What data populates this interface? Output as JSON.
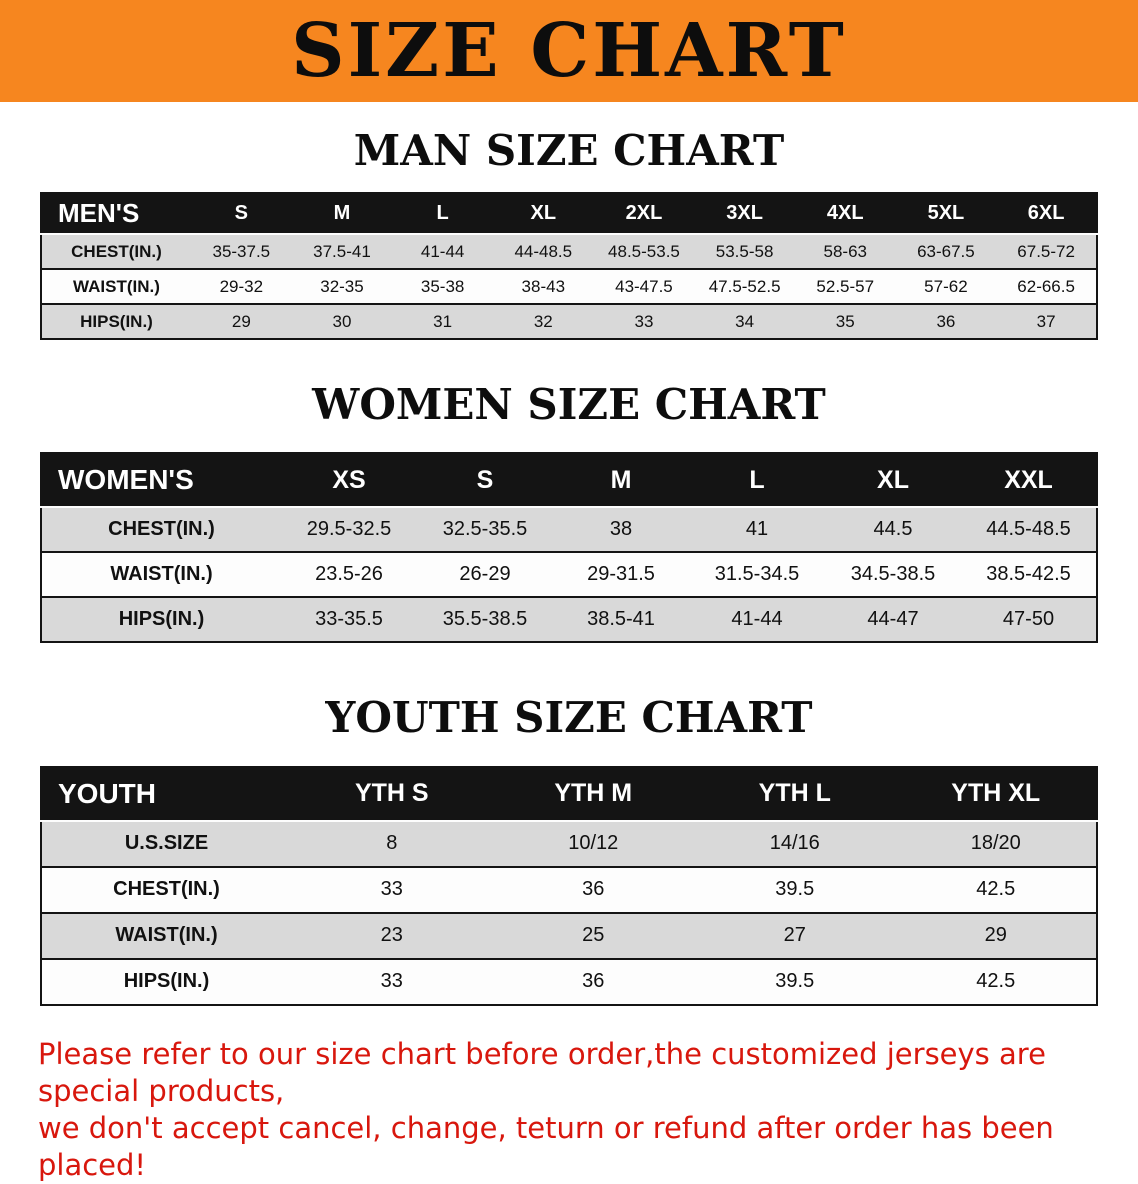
{
  "banner": {
    "title": "SIZE CHART"
  },
  "colors": {
    "banner_orange": "#f6861f",
    "header_black": "#141414",
    "row_gray": "#d9d9d9",
    "disclaimer_red": "#d8170d"
  },
  "men_chart": {
    "heading": "MAN SIZE CHART",
    "table": {
      "title": "MEN'S",
      "columns": [
        "S",
        "M",
        "L",
        "XL",
        "2XL",
        "3XL",
        "4XL",
        "5XL",
        "6XL"
      ],
      "rows": [
        {
          "label": "CHEST(IN.)",
          "values": [
            "35-37.5",
            "37.5-41",
            "41-44",
            "44-48.5",
            "48.5-53.5",
            "53.5-58",
            "58-63",
            "63-67.5",
            "67.5-72"
          ]
        },
        {
          "label": "WAIST(IN.)",
          "values": [
            "29-32",
            "32-35",
            "35-38",
            "38-43",
            "43-47.5",
            "47.5-52.5",
            "52.5-57",
            "57-62",
            "62-66.5"
          ]
        },
        {
          "label": "HIPS(IN.)",
          "values": [
            "29",
            "30",
            "31",
            "32",
            "33",
            "34",
            "35",
            "36",
            "37"
          ]
        }
      ]
    }
  },
  "women_chart": {
    "heading": "WOMEN SIZE CHART",
    "table": {
      "title": "WOMEN'S",
      "columns": [
        "XS",
        "S",
        "M",
        "L",
        "XL",
        "XXL"
      ],
      "rows": [
        {
          "label": "CHEST(IN.)",
          "values": [
            "29.5-32.5",
            "32.5-35.5",
            "38",
            "41",
            "44.5",
            "44.5-48.5"
          ]
        },
        {
          "label": "WAIST(IN.)",
          "values": [
            "23.5-26",
            "26-29",
            "29-31.5",
            "31.5-34.5",
            "34.5-38.5",
            "38.5-42.5"
          ]
        },
        {
          "label": "HIPS(IN.)",
          "values": [
            "33-35.5",
            "35.5-38.5",
            "38.5-41",
            "41-44",
            "44-47",
            "47-50"
          ]
        }
      ]
    }
  },
  "youth_chart": {
    "heading": "YOUTH SIZE CHART",
    "table": {
      "title": "YOUTH",
      "columns": [
        "YTH S",
        "YTH M",
        "YTH L",
        "YTH XL"
      ],
      "rows": [
        {
          "label": "U.S.SIZE",
          "values": [
            "8",
            "10/12",
            "14/16",
            "18/20"
          ]
        },
        {
          "label": "CHEST(IN.)",
          "values": [
            "33",
            "36",
            "39.5",
            "42.5"
          ]
        },
        {
          "label": "WAIST(IN.)",
          "values": [
            "23",
            "25",
            "27",
            "29"
          ]
        },
        {
          "label": "HIPS(IN.)",
          "values": [
            "33",
            "36",
            "39.5",
            "42.5"
          ]
        }
      ]
    }
  },
  "disclaimer": {
    "line1": "Please refer to our size chart before order,the customized jerseys are special products,",
    "line2": "we don't accept cancel, change, teturn or refund after order has been placed!"
  }
}
